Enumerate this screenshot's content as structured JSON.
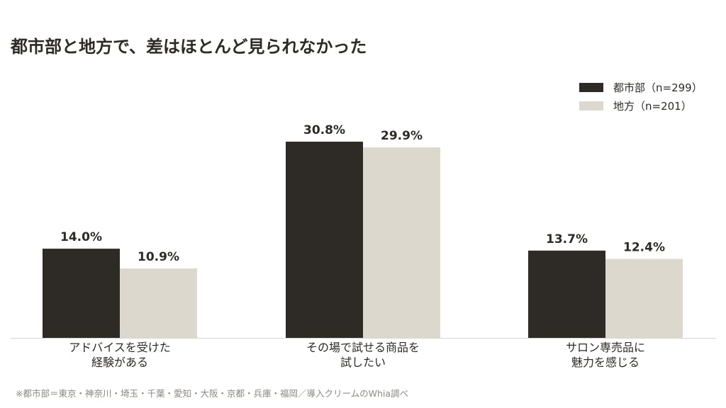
{
  "chart_data": {
    "type": "bar",
    "title": "都市部と地方で、差はほとんど見られなかった",
    "categories": [
      [
        "アドバイスを受けた",
        "経験がある"
      ],
      [
        "その場で試せる商品を",
        "試したい"
      ],
      [
        "サロン専売品に",
        "魅力を感じる"
      ]
    ],
    "series": [
      {
        "name": "都市部（n=299）",
        "color": "#2e2a25",
        "values": [
          14.0,
          30.8,
          13.7
        ],
        "labels": [
          "14.0%",
          "30.8%",
          "13.7%"
        ]
      },
      {
        "name": "地方（n=201）",
        "color": "#ddd8ce",
        "values": [
          10.9,
          29.9,
          12.4
        ],
        "labels": [
          "10.9%",
          "29.9%",
          "12.4%"
        ]
      }
    ],
    "ylim": [
      0,
      35
    ],
    "grid": false,
    "legend_position": "top-right",
    "note": "※都市部＝東京・神奈川・埼玉・千葉・愛知・大阪・京都・兵庫・福岡／導入クリームのWhia調べ"
  }
}
